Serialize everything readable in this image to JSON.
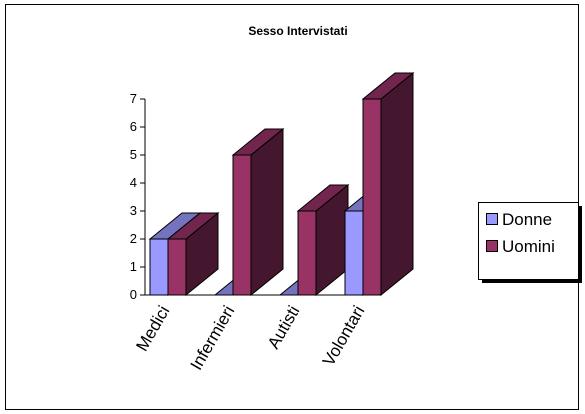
{
  "chart_data": {
    "type": "bar",
    "title": "Sesso Intervistati",
    "categories": [
      "Medici",
      "Infermieri",
      "Autisti",
      "Volontari"
    ],
    "series": [
      {
        "name": "Donne",
        "values": [
          2,
          0,
          0,
          3
        ],
        "color": "#9999ff"
      },
      {
        "name": "Uomini",
        "values": [
          2,
          5,
          3,
          7
        ],
        "color": "#993366"
      }
    ],
    "yticks": [
      0,
      1,
      2,
      3,
      4,
      5,
      6,
      7
    ],
    "ylim": [
      0,
      7
    ],
    "grid": false,
    "legend": "right",
    "style": "3d-bar"
  }
}
